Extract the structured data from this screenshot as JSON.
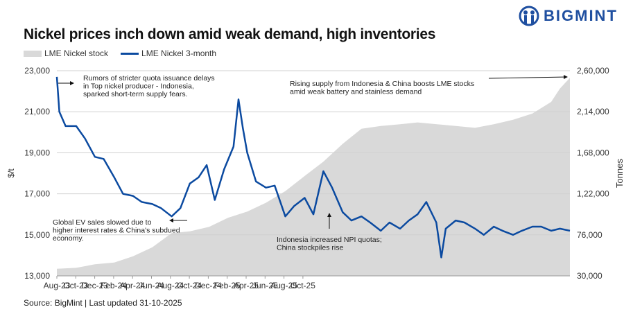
{
  "header": {
    "title": "Nickel prices inch down amid weak demand, high inventories",
    "logo_text": "BIGMINT",
    "brand_color": "#1f4fa0"
  },
  "footer": {
    "source": "Source: BigMint | Last updated 31-10-2025"
  },
  "chart_data": {
    "type": "line+area",
    "title": "Nickel prices inch down amid weak demand, high inventories",
    "ylabel": "$/t",
    "y2label": "Tonnes",
    "ylim": [
      13000,
      23000
    ],
    "y2lim": [
      30000,
      260000
    ],
    "yticks": [
      "23,000",
      "21,000",
      "19,000",
      "17,000",
      "15,000",
      "13,000"
    ],
    "y2ticks": [
      "2,60,000",
      "2,14,000",
      "1,68,000",
      "1,22,000",
      "76,000",
      "30,000"
    ],
    "xticks": [
      "Aug-23",
      "Oct-23",
      "Dec-23",
      "Feb-24",
      "Apr-24",
      "Jun-24",
      "Aug-24",
      "Oct-24",
      "Dec-24",
      "Feb-25",
      "Apr-25",
      "Jun-25",
      "Aug-25",
      "Oct-25"
    ],
    "legend": {
      "placement": "top-left"
    },
    "grid": "horizontal",
    "series": [
      {
        "name": "LME Nickel stock",
        "axis": "right",
        "kind": "area",
        "color": "#d9d9d9",
        "x": [
          "2023-08-01",
          "2023-09-01",
          "2023-10-01",
          "2023-11-01",
          "2023-12-01",
          "2024-01-01",
          "2024-02-01",
          "2024-03-01",
          "2024-04-01",
          "2024-05-01",
          "2024-06-01",
          "2024-07-01",
          "2024-08-01",
          "2024-09-01",
          "2024-10-01",
          "2024-11-01",
          "2024-12-01",
          "2025-01-01",
          "2025-02-01",
          "2025-03-01",
          "2025-04-01",
          "2025-05-01",
          "2025-06-01",
          "2025-07-01",
          "2025-08-01",
          "2025-09-01",
          "2025-10-01",
          "2025-10-15",
          "2025-10-31"
        ],
        "values": [
          38000,
          39000,
          43000,
          45000,
          52000,
          62000,
          78000,
          80000,
          85000,
          95000,
          102000,
          112000,
          125000,
          142000,
          158000,
          178000,
          195000,
          198000,
          200000,
          202000,
          200000,
          198000,
          196000,
          200000,
          205000,
          212000,
          225000,
          240000,
          252000
        ]
      },
      {
        "name": "LME Nickel 3-month",
        "axis": "left",
        "kind": "line",
        "color": "#0b4aa0",
        "x": [
          "2023-08-01",
          "2023-08-05",
          "2023-08-15",
          "2023-09-01",
          "2023-09-15",
          "2023-10-01",
          "2023-10-15",
          "2023-11-01",
          "2023-11-15",
          "2023-12-01",
          "2023-12-15",
          "2024-01-01",
          "2024-01-15",
          "2024-02-01",
          "2024-02-15",
          "2024-03-01",
          "2024-03-15",
          "2024-03-28",
          "2024-04-10",
          "2024-04-25",
          "2024-05-10",
          "2024-05-18",
          "2024-05-25",
          "2024-06-01",
          "2024-06-15",
          "2024-07-01",
          "2024-07-15",
          "2024-08-01",
          "2024-08-15",
          "2024-09-01",
          "2024-09-15",
          "2024-10-01",
          "2024-10-15",
          "2024-11-01",
          "2024-11-15",
          "2024-12-01",
          "2024-12-15",
          "2025-01-01",
          "2025-01-15",
          "2025-02-01",
          "2025-02-15",
          "2025-03-01",
          "2025-03-15",
          "2025-03-31",
          "2025-04-08",
          "2025-04-15",
          "2025-05-01",
          "2025-05-15",
          "2025-06-01",
          "2025-06-15",
          "2025-07-01",
          "2025-07-15",
          "2025-08-01",
          "2025-08-15",
          "2025-09-01",
          "2025-09-15",
          "2025-10-01",
          "2025-10-15",
          "2025-10-31"
        ],
        "values": [
          22700,
          21000,
          20300,
          20300,
          19700,
          18800,
          18700,
          17800,
          17000,
          16900,
          16600,
          16500,
          16300,
          15900,
          16300,
          17500,
          17800,
          18400,
          16700,
          18200,
          19300,
          21600,
          20200,
          19000,
          17600,
          17300,
          17400,
          15900,
          16400,
          16800,
          16000,
          18100,
          17300,
          16100,
          15700,
          15900,
          15600,
          15200,
          15600,
          15300,
          15700,
          16000,
          16600,
          15600,
          13900,
          15300,
          15700,
          15600,
          15300,
          15000,
          15400,
          15200,
          15000,
          15200,
          15400,
          15400,
          15200,
          15300,
          15200
        ]
      }
    ],
    "annotations": [
      {
        "text": [
          "Rumors of stricter quota issuance delays",
          "in Top nickel producer - Indonesia,",
          "sparked short-term supply fears."
        ]
      },
      {
        "text": [
          "Rising supply from Indonesia & China boosts LME stocks",
          "amid weak battery and stainless demand"
        ]
      },
      {
        "text": [
          "Global EV sales slowed due to",
          "higher interest rates & China's subdued",
          "economy."
        ]
      },
      {
        "text": [
          "Indonesia increased NPI quotas;",
          "China stockpiles rise"
        ]
      }
    ]
  }
}
